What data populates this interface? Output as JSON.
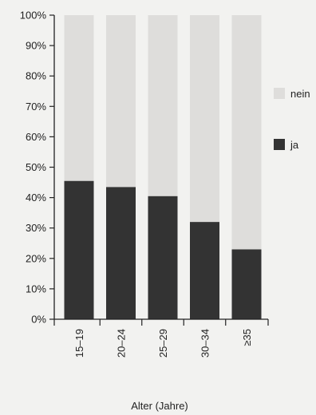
{
  "chart_data": {
    "type": "bar",
    "stacked": true,
    "percent": true,
    "categories": [
      "15–19",
      "20–24",
      "25–29",
      "30–34",
      "≥35"
    ],
    "series": [
      {
        "name": "ja",
        "values": [
          45.5,
          43.5,
          40.5,
          32,
          23
        ],
        "color": "#333333"
      },
      {
        "name": "nein",
        "values": [
          54.5,
          56.5,
          59.5,
          68,
          77
        ],
        "color": "#dedddb"
      }
    ],
    "ylim": [
      0,
      100
    ],
    "yticks": [
      "0%",
      "10%",
      "20%",
      "30%",
      "40%",
      "50%",
      "60%",
      "70%",
      "80%",
      "90%",
      "100%"
    ],
    "xlabel": "Alter (Jahre)",
    "ylabel": "",
    "legend": {
      "position": "right",
      "items": [
        "nein",
        "ja"
      ]
    },
    "grid": false
  },
  "colors": {
    "background": "#f2f2f0",
    "axis": "#222222"
  }
}
